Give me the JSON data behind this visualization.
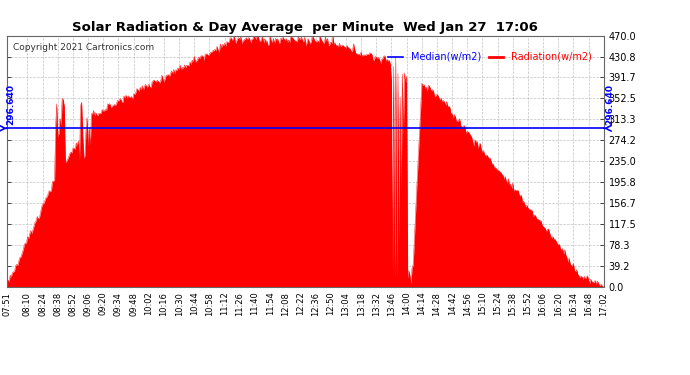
{
  "title": "Solar Radiation & Day Average  per Minute  Wed Jan 27  17:06",
  "copyright": "Copyright 2021 Cartronics.com",
  "median_value": 296.64,
  "median_label": "296.640",
  "y_max": 470.0,
  "y_min": 0.0,
  "yticks": [
    0.0,
    39.2,
    78.3,
    117.5,
    156.7,
    195.8,
    235.0,
    274.2,
    313.3,
    352.5,
    391.7,
    430.8,
    470.0
  ],
  "legend_median_label": "Median(w/m2)",
  "legend_radiation_label": "Radiation(w/m2)",
  "median_color": "#0000ff",
  "radiation_color": "#ff0000",
  "background_color": "#ffffff",
  "grid_color": "#aaaaaa",
  "title_color": "#000000",
  "copyright_color": "#333333",
  "time_start": "07:51",
  "time_end": "17:02",
  "xtick_labels": [
    "07:51",
    "08:10",
    "08:24",
    "08:38",
    "08:52",
    "09:06",
    "09:20",
    "09:34",
    "09:48",
    "10:02",
    "10:16",
    "10:30",
    "10:44",
    "10:58",
    "11:12",
    "11:26",
    "11:40",
    "11:54",
    "12:08",
    "12:22",
    "12:36",
    "12:50",
    "13:04",
    "13:18",
    "13:32",
    "13:46",
    "14:00",
    "14:14",
    "14:28",
    "14:42",
    "14:56",
    "15:10",
    "15:24",
    "15:38",
    "15:52",
    "16:06",
    "16:20",
    "16:34",
    "16:48",
    "17:02"
  ]
}
